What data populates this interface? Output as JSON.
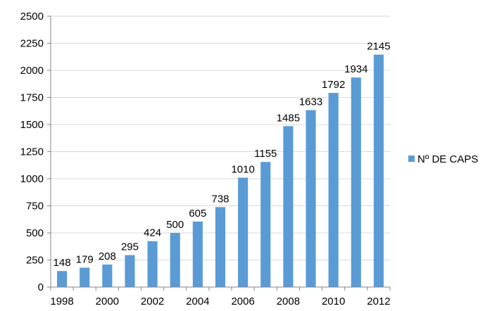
{
  "chart_data": {
    "type": "bar",
    "categories": [
      "1998",
      "1999",
      "2000",
      "2001",
      "2002",
      "2003",
      "2004",
      "2005",
      "2006",
      "2007",
      "2008",
      "2009",
      "2010",
      "2011",
      "2012"
    ],
    "x_tick_labels": [
      "1998",
      "2000",
      "2002",
      "2004",
      "2006",
      "2008",
      "2010",
      "2012"
    ],
    "series": [
      {
        "name": "Nº DE CAPS",
        "values": [
          148,
          179,
          208,
          295,
          424,
          500,
          605,
          738,
          1010,
          1155,
          1485,
          1633,
          1792,
          1934,
          2145
        ]
      }
    ],
    "y_ticks": [
      "0",
      "250",
      "500",
      "750",
      "1000",
      "1250",
      "1500",
      "1750",
      "2000",
      "2250",
      "2500"
    ],
    "ylim": [
      0,
      2500
    ],
    "grid": true,
    "data_labels": true,
    "legend_position": "right",
    "title": "",
    "xlabel": "",
    "ylabel": ""
  },
  "colors": {
    "bar": "#5B9BD5",
    "grid": "#D9D9D9",
    "axis": "#868686"
  }
}
